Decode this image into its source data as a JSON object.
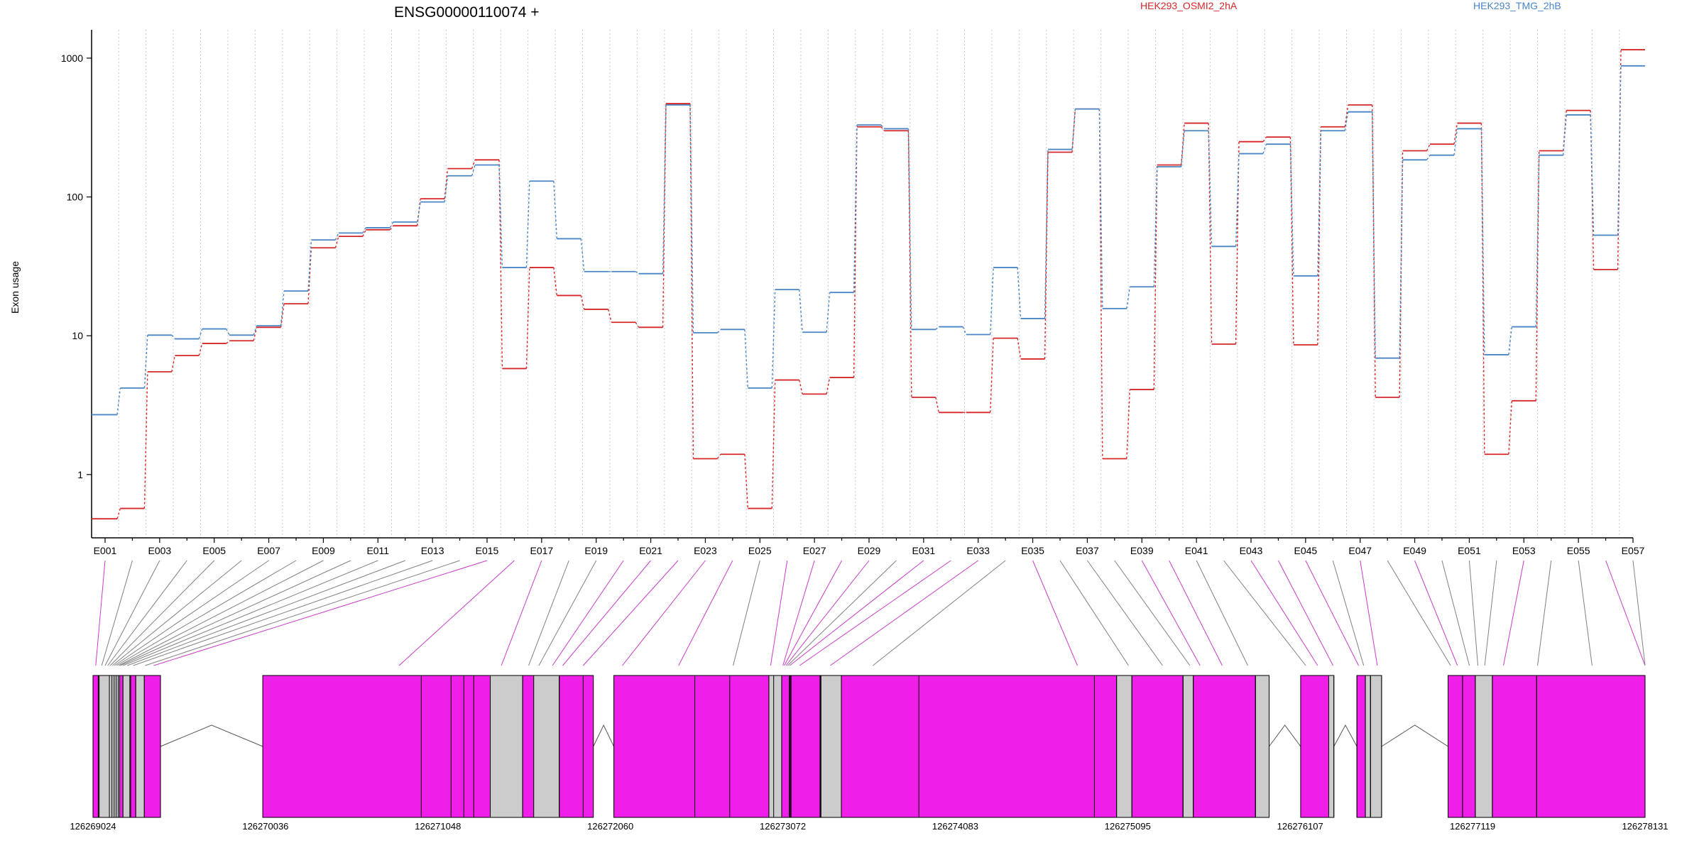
{
  "chart_data": {
    "type": "line",
    "title": "ENSG00000110074 +",
    "ylabel": "Exon usage",
    "yscale": "log",
    "ylim": [
      0.35,
      1600
    ],
    "yticks": [
      1,
      10,
      100,
      1000
    ],
    "ytick_labels": [
      "1",
      "10",
      "100",
      "1000"
    ],
    "grid": "vertical dotted",
    "legend_placement": "top-right",
    "categories": [
      "E001",
      "E002",
      "E003",
      "E004",
      "E005",
      "E006",
      "E007",
      "E008",
      "E009",
      "E010",
      "E011",
      "E012",
      "E013",
      "E014",
      "E015",
      "E016",
      "E017",
      "E018",
      "E019",
      "E020",
      "E021",
      "E022",
      "E023",
      "E024",
      "E025",
      "E026",
      "E027",
      "E028",
      "E029",
      "E030",
      "E031",
      "E032",
      "E033",
      "E034",
      "E035",
      "E036",
      "E037",
      "E038",
      "E039",
      "E040",
      "E041",
      "E042",
      "E043",
      "E044",
      "E045",
      "E046",
      "E047",
      "E048",
      "E049",
      "E050",
      "E051",
      "E052",
      "E053",
      "E054",
      "E055",
      "E056",
      "E057"
    ],
    "xtick_labels": [
      "E001",
      "E003",
      "E005",
      "E007",
      "E009",
      "E011",
      "E013",
      "E015",
      "E017",
      "E019",
      "E021",
      "E023",
      "E025",
      "E027",
      "E029",
      "E031",
      "E033",
      "E035",
      "E037",
      "E039",
      "E041",
      "E043",
      "E045",
      "E047",
      "E049",
      "E051",
      "E053",
      "E055",
      "E057"
    ],
    "series": [
      {
        "name": "HEK293_OSMI2_2hA",
        "color": "#d62728",
        "values": [
          0.48,
          0.57,
          5.5,
          7.2,
          8.8,
          9.2,
          11.5,
          17,
          43,
          52,
          58,
          62,
          97,
          160,
          185,
          5.8,
          31,
          19.5,
          15.5,
          12.5,
          11.5,
          470,
          1.3,
          1.4,
          0.57,
          4.8,
          3.8,
          5.0,
          320,
          300,
          3.6,
          2.8,
          2.8,
          9.6,
          6.8,
          210,
          430,
          1.3,
          4.1,
          170,
          340,
          8.7,
          250,
          270,
          8.6,
          320,
          460,
          3.6,
          215,
          240,
          340,
          1.4,
          3.4,
          215,
          420,
          30,
          1150
        ]
      },
      {
        "name": "HEK293_TMG_2hB",
        "color": "#4a86c5",
        "values": [
          2.7,
          4.2,
          10.1,
          9.5,
          11.2,
          10.1,
          11.8,
          21,
          49,
          55,
          60,
          66,
          92,
          142,
          170,
          31,
          130,
          50,
          29,
          29,
          28,
          460,
          10.5,
          11.1,
          4.2,
          21.5,
          10.6,
          20.5,
          330,
          310,
          11.1,
          11.6,
          10.2,
          31,
          13.3,
          220,
          430,
          15.7,
          22.5,
          165,
          300,
          44,
          205,
          240,
          27,
          300,
          410,
          6.9,
          185,
          200,
          310,
          7.3,
          11.6,
          200,
          390,
          53,
          880
        ]
      }
    ],
    "gene_model": {
      "coordinate_labels": [
        "126269024",
        "126270036",
        "126271048",
        "126272060",
        "126273072",
        "126274083",
        "126275095",
        "126276107",
        "126277119",
        "126278131"
      ],
      "genomic_range": [
        126269024,
        126278131
      ],
      "highlight_color": "#f01ee9",
      "other_color": "#cccccc",
      "segments": [
        {
          "start": 126269024,
          "end": 126269055,
          "kind": "highlight"
        },
        {
          "start": 126269055,
          "end": 126269180,
          "kind": "other"
        },
        {
          "start": 126269180,
          "end": 126269200,
          "kind": "highlight"
        },
        {
          "start": 126269200,
          "end": 126269245,
          "kind": "other"
        },
        {
          "start": 126269245,
          "end": 126269275,
          "kind": "highlight"
        },
        {
          "start": 126269275,
          "end": 126269325,
          "kind": "other"
        },
        {
          "start": 126269325,
          "end": 126269420,
          "kind": "highlight"
        },
        {
          "start": 126270020,
          "end": 126271355,
          "kind": "highlight"
        },
        {
          "start": 126271355,
          "end": 126271545,
          "kind": "other"
        },
        {
          "start": 126271545,
          "end": 126271610,
          "kind": "highlight"
        },
        {
          "start": 126271610,
          "end": 126271760,
          "kind": "other"
        },
        {
          "start": 126271760,
          "end": 126271960,
          "kind": "highlight"
        },
        {
          "start": 126272080,
          "end": 126272990,
          "kind": "highlight"
        },
        {
          "start": 126272990,
          "end": 126273065,
          "kind": "other"
        },
        {
          "start": 126273065,
          "end": 126273110,
          "kind": "highlight"
        },
        {
          "start": 126273110,
          "end": 126273295,
          "kind": "highlight"
        },
        {
          "start": 126273295,
          "end": 126273415,
          "kind": "other"
        },
        {
          "start": 126273415,
          "end": 126275030,
          "kind": "highlight"
        },
        {
          "start": 126275030,
          "end": 126275120,
          "kind": "other"
        },
        {
          "start": 126275120,
          "end": 126275420,
          "kind": "highlight"
        },
        {
          "start": 126275420,
          "end": 126275480,
          "kind": "other"
        },
        {
          "start": 126275480,
          "end": 126275845,
          "kind": "highlight"
        },
        {
          "start": 126275845,
          "end": 126275925,
          "kind": "other"
        },
        {
          "start": 126276110,
          "end": 126276275,
          "kind": "highlight"
        },
        {
          "start": 126276275,
          "end": 126276305,
          "kind": "other"
        },
        {
          "start": 126276440,
          "end": 126276490,
          "kind": "highlight"
        },
        {
          "start": 126276490,
          "end": 126276520,
          "kind": "other"
        },
        {
          "start": 126276520,
          "end": 126276585,
          "kind": "other"
        },
        {
          "start": 126276975,
          "end": 126277060,
          "kind": "highlight"
        },
        {
          "start": 126277060,
          "end": 126277135,
          "kind": "highlight"
        },
        {
          "start": 126277135,
          "end": 126277235,
          "kind": "other"
        },
        {
          "start": 126277235,
          "end": 126277495,
          "kind": "highlight"
        },
        {
          "start": 126277495,
          "end": 126278131,
          "kind": "highlight"
        }
      ],
      "boundary_lines": [
        126269060,
        126269120,
        126269135,
        126269148,
        126269160,
        126269172,
        126269240,
        126270950,
        126271125,
        126271200,
        126271258,
        126271355,
        126271545,
        126271760,
        126271900,
        126272080,
        126272555,
        126272760,
        126272990,
        126273018,
        126273065,
        126273110,
        126273115,
        126273120,
        126273290,
        126273295,
        126273415,
        126273870,
        126274900,
        126275030,
        126275120,
        126275420,
        126275480,
        126275845,
        126276275,
        126276305,
        126276440,
        126276520,
        126276585,
        126277060,
        126277135,
        126277235,
        126277495
      ],
      "introns": [
        [
          126269420,
          126270020
        ],
        [
          126271960,
          126272080
        ],
        [
          126275925,
          126276110
        ],
        [
          126276305,
          126276440
        ],
        [
          126276585,
          126276975
        ]
      ]
    }
  }
}
